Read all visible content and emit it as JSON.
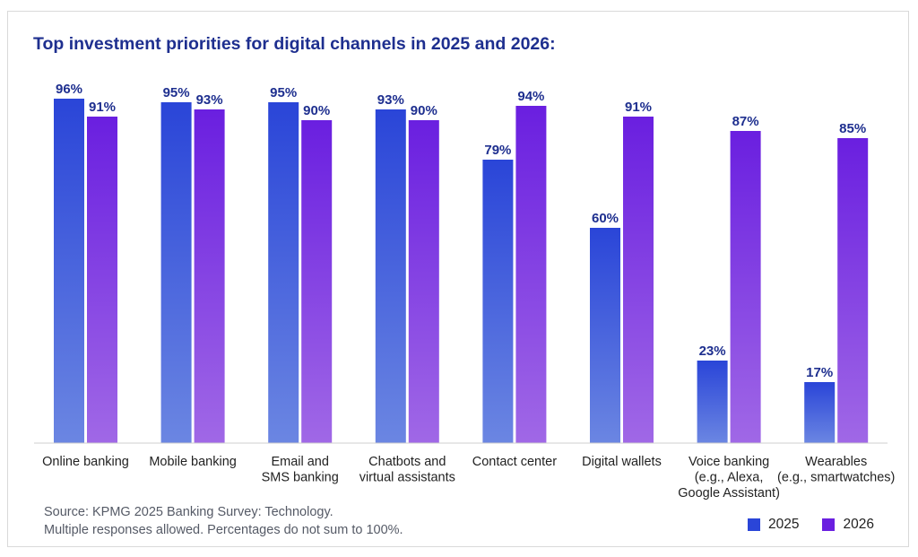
{
  "colors": {
    "series_2025": "#2a45d8",
    "series_2026": "#6a1fe0",
    "title": "#1e2f8f"
  },
  "chart_data": {
    "type": "bar",
    "title": "Top investment priorities for digital channels in 2025 and 2026:",
    "categories": [
      [
        "Online banking"
      ],
      [
        "Mobile banking"
      ],
      [
        "Email and",
        "SMS banking"
      ],
      [
        "Chatbots and",
        "virtual assistants"
      ],
      [
        "Contact center"
      ],
      [
        "Digital wallets"
      ],
      [
        "Voice banking",
        "(e.g., Alexa,",
        "Google Assistant)"
      ],
      [
        "Wearables",
        "(e.g., smartwatches)"
      ]
    ],
    "series": [
      {
        "name": "2025",
        "values": [
          96,
          95,
          95,
          93,
          79,
          60,
          23,
          17
        ],
        "labels": [
          "96%",
          "95%",
          "95%",
          "93%",
          "79%",
          "60%",
          "23%",
          "17%"
        ]
      },
      {
        "name": "2026",
        "values": [
          91,
          93,
          90,
          90,
          94,
          91,
          87,
          85
        ],
        "labels": [
          "91%",
          "93%",
          "90%",
          "90%",
          "94%",
          "91%",
          "87%",
          "85%"
        ]
      }
    ],
    "ylim": [
      0,
      100
    ],
    "xlabel": "",
    "ylabel": "",
    "legend_position": "bottom-right"
  },
  "footnote": {
    "line1": "Source: KPMG 2025 Banking Survey: Technology.",
    "line2": "Multiple responses allowed. Percentages do not sum to 100%."
  },
  "legend": {
    "item1": "2025",
    "item2": "2026"
  }
}
